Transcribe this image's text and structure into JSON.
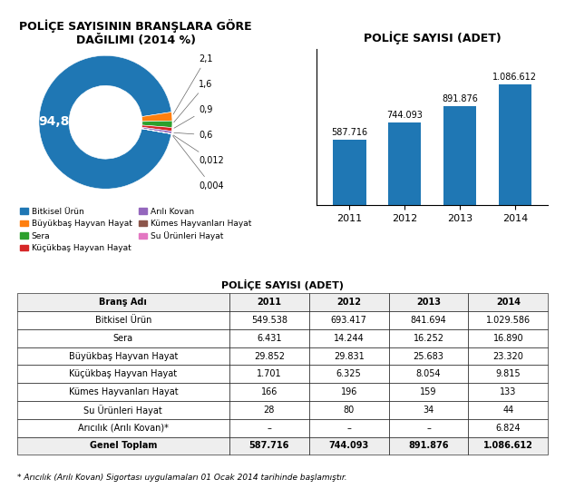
{
  "chart_data": [
    {
      "type": "pie",
      "title": "POLİÇE SAYISININ BRANŞLARA GÖRE\nDAĞILIMI (2014 %)",
      "categories": [
        "Bitkisel Ürün",
        "Büyükbaş Hayvan Hayat",
        "Sera",
        "Küçükbaş Hayvan Hayat",
        "Arılı Kovan",
        "Kümes Hayvanları Hayat",
        "Su Ürünleri Hayat"
      ],
      "values": [
        94.8,
        2.1,
        1.6,
        0.9,
        0.6,
        0.012,
        0.004
      ],
      "value_labels": [
        "94,8",
        "2,1",
        "1,6",
        "0,9",
        "0,6",
        "0,012",
        "0,004"
      ],
      "data_labels": true,
      "legend": "upper center"
    },
    {
      "type": "bar",
      "title": "POLİÇE SAYISI (ADET)",
      "categories": [
        "2011",
        "2012",
        "2013",
        "2014"
      ],
      "values": [
        587716,
        744093,
        891876,
        1086612
      ],
      "value_labels": [
        "587.716",
        "744.093",
        "891.876",
        "1.086.612"
      ],
      "data_labels": true,
      "ylim": [
        0,
        1400000
      ],
      "tick_labels": "x",
      "grid": false
    },
    {
      "type": "table",
      "title": "POLİÇE SAYISI (ADET)",
      "columns": [
        "Branş Adı",
        "2011",
        "2012",
        "2013",
        "2014"
      ],
      "rows": [
        [
          "Bitkisel Ürün",
          "549.538",
          "693.417",
          "841.694",
          "1.029.586"
        ],
        [
          "Sera",
          "6.431",
          "14.244",
          "16.252",
          "16.890"
        ],
        [
          "Büyükbaş Hayvan Hayat",
          "29.852",
          "29.831",
          "25.683",
          "23.320"
        ],
        [
          "Küçükbaş Hayvan Hayat",
          "1.701",
          "6.325",
          "8.054",
          "9.815"
        ],
        [
          "Kümes Hayvanları Hayat",
          "166",
          "196",
          "159",
          "133"
        ],
        [
          "Su Ürünleri Hayat",
          "28",
          "80",
          "34",
          "44"
        ],
        [
          "Arıcılık (Arılı Kovan)*",
          "–",
          "–",
          "–",
          "6.824"
        ],
        [
          "Genel Toplam",
          "587.716",
          "744.093",
          "891.876",
          "1.086.612"
        ]
      ],
      "footnote": "* Arıcılık (Arılı Kovan) Sigortası uygulamaları 01 Ocak 2014 tarihinde başlamıştır."
    }
  ]
}
